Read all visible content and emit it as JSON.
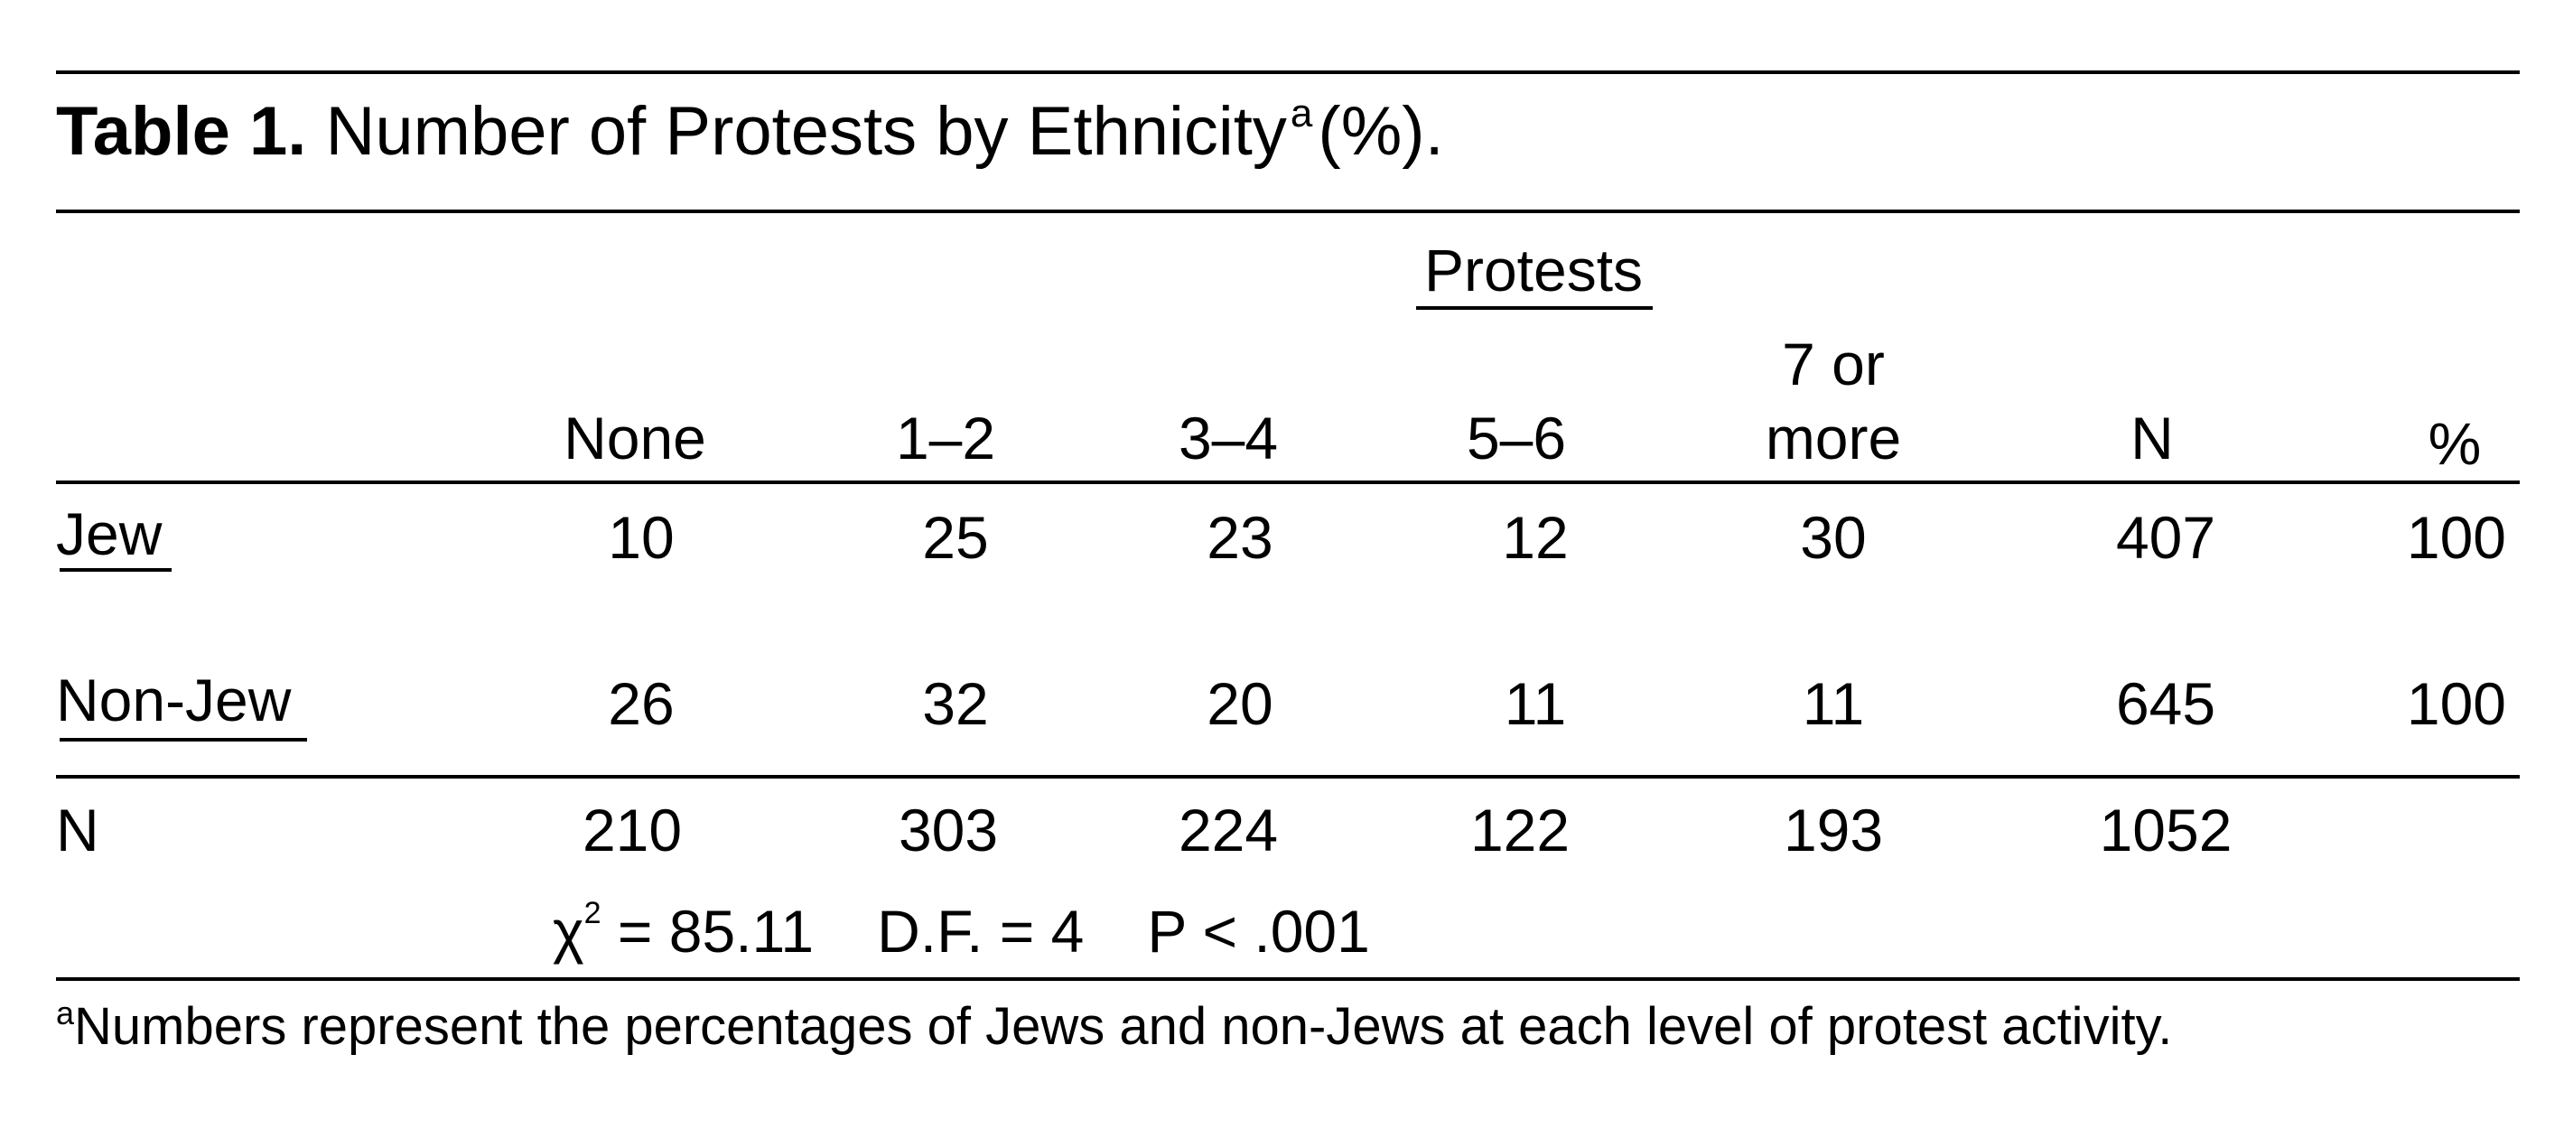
{
  "caption": {
    "label": "Table 1.",
    "title": "Number of Protests by Ethnicity",
    "superscript": "a",
    "suffix": "(%)."
  },
  "spanner_header": "Protests",
  "columns": {
    "none": "None",
    "c12": "1–2",
    "c34": "3–4",
    "c56": "5–6",
    "c7_line1": "7 or",
    "c7_line2": "more",
    "n": "N",
    "pct": "%"
  },
  "rows": [
    {
      "label": "Jew",
      "values": [
        "10",
        "25",
        "23",
        "12",
        "30",
        "407",
        "100"
      ]
    },
    {
      "label": "Non-Jew",
      "values": [
        "26",
        "32",
        "20",
        "11",
        "11",
        "645",
        "100"
      ]
    }
  ],
  "totals": {
    "label": "N",
    "values": [
      "210",
      "303",
      "224",
      "122",
      "193",
      "1052"
    ]
  },
  "stats": {
    "chi_symbol": "χ",
    "chi_exp": "2",
    "chi_value": " = 85.11",
    "df": "D.F. = 4",
    "p": "P < .001"
  },
  "footnote": {
    "marker": "a",
    "text": "Numbers represent the percentages of Jews and non-Jews at each level of protest activity."
  }
}
